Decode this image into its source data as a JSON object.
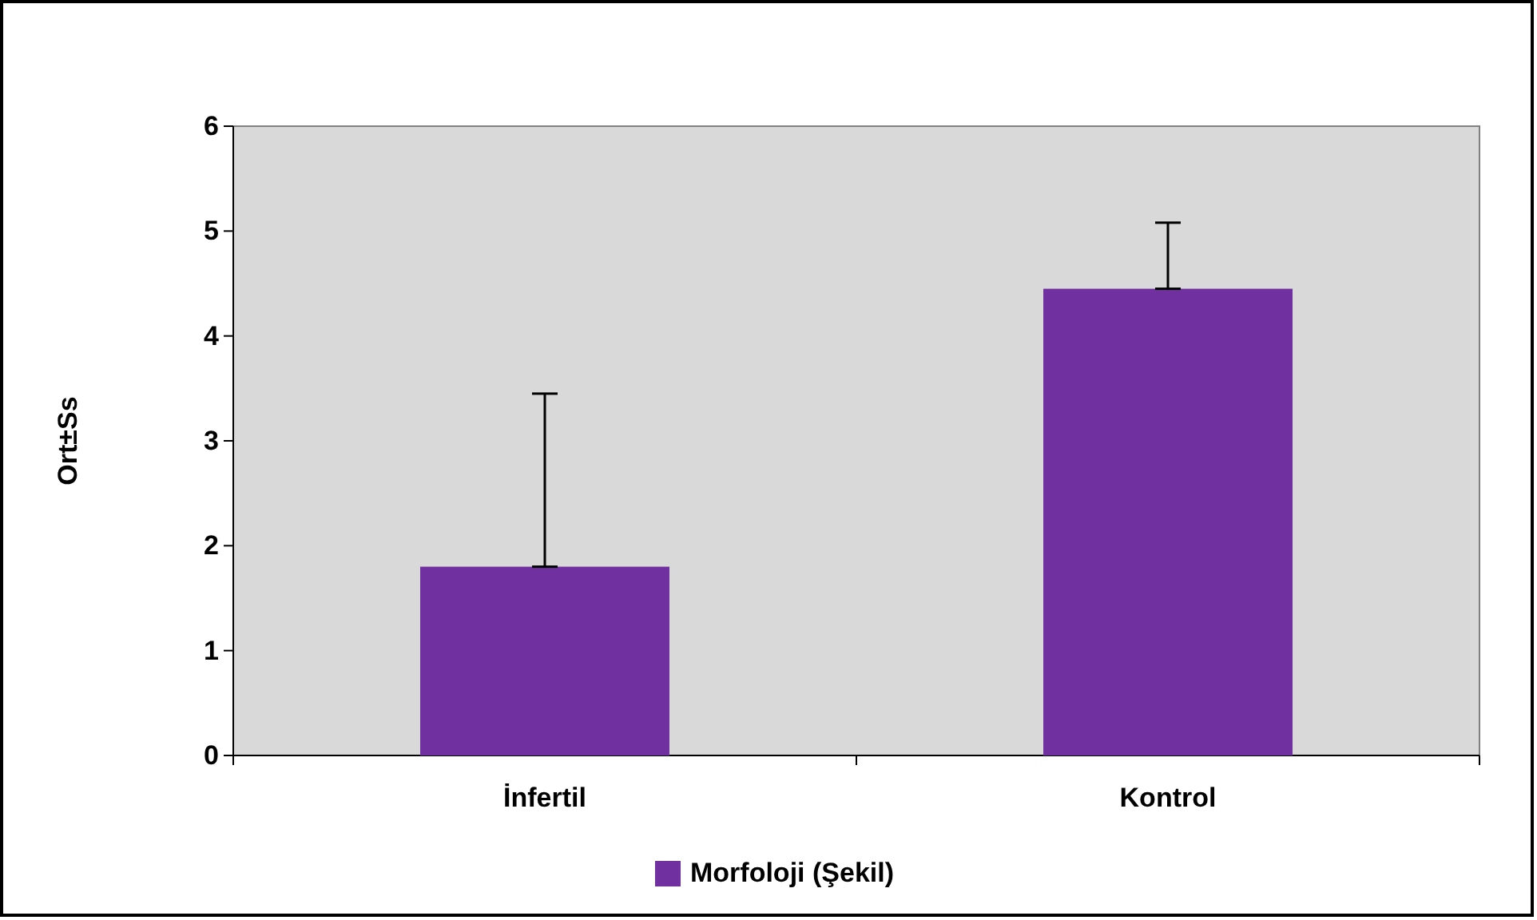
{
  "chart_data": {
    "type": "bar",
    "ylabel": "Ort±Ss",
    "categories": [
      "İnfertil",
      "Kontrol"
    ],
    "series": [
      {
        "name": "Morfoloji (Şekil)",
        "color": "#7030a0",
        "values": [
          1.8,
          4.45
        ],
        "errors": [
          [
            1.8,
            3.45
          ],
          [
            4.45,
            5.08
          ]
        ]
      }
    ],
    "ylim": [
      0,
      6
    ],
    "yticks": [
      0,
      1,
      2,
      3,
      4,
      5,
      6
    ],
    "grid": false,
    "legend": "bottom"
  }
}
